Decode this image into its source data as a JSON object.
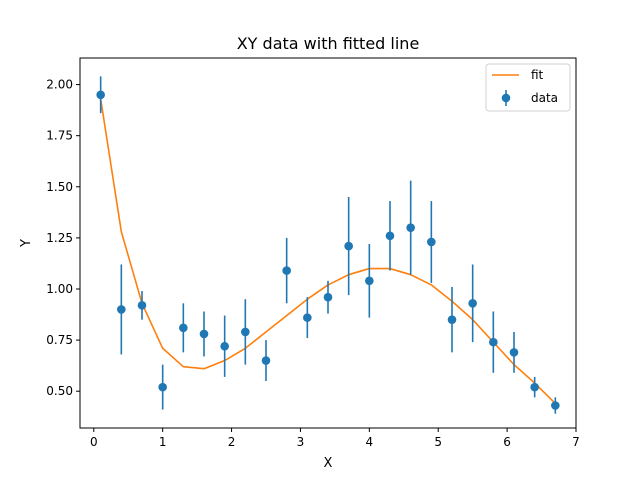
{
  "chart_data": {
    "type": "scatter",
    "title": "XY data with fitted line",
    "xlabel": "X",
    "ylabel": "Y",
    "xlim": [
      -0.2,
      7.0
    ],
    "ylim": [
      0.32,
      2.13
    ],
    "xticks": [
      0,
      1,
      2,
      3,
      4,
      5,
      6,
      7
    ],
    "xtick_labels": [
      "0",
      "1",
      "2",
      "3",
      "4",
      "5",
      "6",
      "7"
    ],
    "yticks": [
      0.5,
      0.75,
      1.0,
      1.25,
      1.5,
      1.75,
      2.0
    ],
    "ytick_labels": [
      "0.50",
      "0.75",
      "1.00",
      "1.25",
      "1.50",
      "1.75",
      "2.00"
    ],
    "grid": false,
    "legend": {
      "position": "top-right",
      "entries": [
        "fit",
        "data"
      ]
    },
    "series": [
      {
        "name": "fit",
        "kind": "line",
        "color": "#ff7f0e",
        "x": [
          0.1,
          0.4,
          0.7,
          1.0,
          1.3,
          1.6,
          1.9,
          2.2,
          2.5,
          2.8,
          3.1,
          3.4,
          3.7,
          4.0,
          4.3,
          4.6,
          4.9,
          5.2,
          5.5,
          5.8,
          6.1,
          6.4,
          6.7
        ],
        "y": [
          1.93,
          1.28,
          0.93,
          0.71,
          0.62,
          0.61,
          0.65,
          0.71,
          0.79,
          0.87,
          0.95,
          1.02,
          1.07,
          1.1,
          1.1,
          1.07,
          1.02,
          0.94,
          0.85,
          0.74,
          0.63,
          0.54,
          0.44
        ]
      },
      {
        "name": "data",
        "kind": "errorbar",
        "color": "#1f77b4",
        "x": [
          0.1,
          0.4,
          0.7,
          1.0,
          1.3,
          1.6,
          1.9,
          2.2,
          2.5,
          2.8,
          3.1,
          3.4,
          3.7,
          4.0,
          4.3,
          4.6,
          4.9,
          5.2,
          5.5,
          5.8,
          6.1,
          6.4,
          6.7
        ],
        "y": [
          1.95,
          0.9,
          0.92,
          0.52,
          0.81,
          0.78,
          0.72,
          0.79,
          0.65,
          1.09,
          0.86,
          0.96,
          1.21,
          1.04,
          1.26,
          1.3,
          1.23,
          0.85,
          0.93,
          0.74,
          0.69,
          0.52,
          0.43
        ],
        "yerr": [
          0.09,
          0.22,
          0.07,
          0.11,
          0.12,
          0.11,
          0.15,
          0.16,
          0.1,
          0.16,
          0.1,
          0.08,
          0.24,
          0.18,
          0.17,
          0.23,
          0.2,
          0.16,
          0.19,
          0.15,
          0.1,
          0.05,
          0.04
        ]
      }
    ]
  }
}
